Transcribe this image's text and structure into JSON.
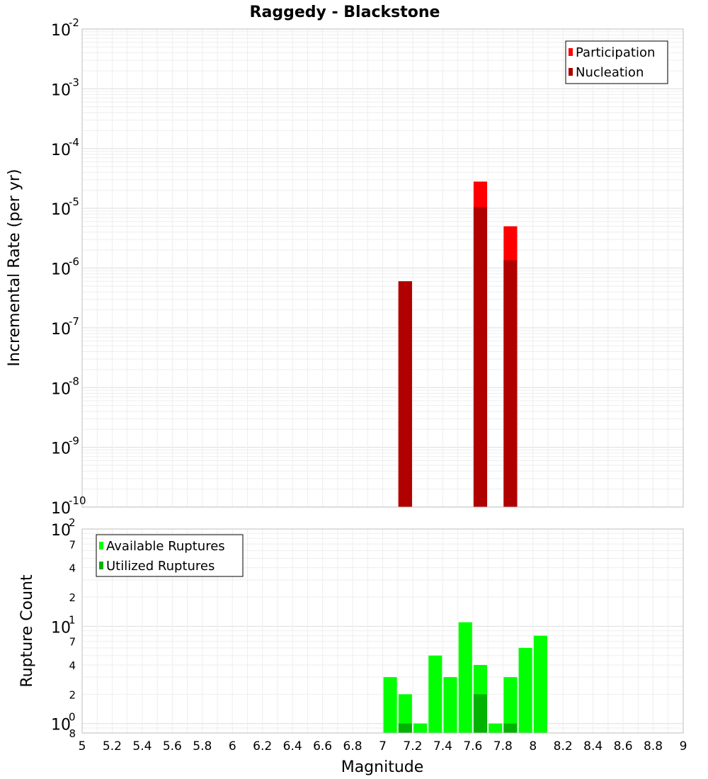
{
  "chart_data": [
    {
      "type": "bar",
      "title": "Raggedy - Blackstone",
      "xlabel": "",
      "ylabel": "Incremental Rate (per yr)",
      "yscale": "log",
      "ylim": [
        1e-10,
        0.01
      ],
      "xlim": [
        5,
        9
      ],
      "x_ticks": [
        "5",
        "5.2",
        "5.4",
        "5.6",
        "5.8",
        "6",
        "6.2",
        "6.4",
        "6.6",
        "6.8",
        "7",
        "7.2",
        "7.4",
        "7.6",
        "7.8",
        "8",
        "8.2",
        "8.4",
        "8.6",
        "8.8",
        "9"
      ],
      "bar_width": 0.09,
      "legend": {
        "position": "top-right",
        "entries": [
          "Participation",
          "Nucleation"
        ]
      },
      "series": [
        {
          "name": "Participation",
          "color": "#ff0000",
          "x": [
            7.15,
            7.65,
            7.85
          ],
          "values": [
            6e-07,
            2.8e-05,
            5e-06
          ]
        },
        {
          "name": "Nucleation",
          "color": "#b00000",
          "x": [
            7.15,
            7.65,
            7.85
          ],
          "values": [
            6e-07,
            1.05e-05,
            1.35e-06
          ]
        }
      ]
    },
    {
      "type": "bar",
      "title": "",
      "xlabel": "Magnitude",
      "ylabel": "Rupture Count",
      "yscale": "log",
      "ylim": [
        0.8,
        100
      ],
      "xlim": [
        5,
        9
      ],
      "x_ticks": [
        "5",
        "5.2",
        "5.4",
        "5.6",
        "5.8",
        "6",
        "6.2",
        "6.4",
        "6.6",
        "6.8",
        "7",
        "7.2",
        "7.4",
        "7.6",
        "7.8",
        "8",
        "8.2",
        "8.4",
        "8.6",
        "8.8",
        "9"
      ],
      "y_minor_labels": [
        {
          "value": 0.8,
          "label": "8"
        },
        {
          "value": 2,
          "label": "2"
        },
        {
          "value": 4,
          "label": "4"
        },
        {
          "value": 7,
          "label": "7"
        },
        {
          "value": 20,
          "label": "2"
        },
        {
          "value": 40,
          "label": "4"
        },
        {
          "value": 70,
          "label": "7"
        }
      ],
      "bar_width": 0.09,
      "legend": {
        "position": "top-left",
        "entries": [
          "Available Ruptures",
          "Utilized Ruptures"
        ]
      },
      "series": [
        {
          "name": "Available Ruptures",
          "color": "#00ff00",
          "x": [
            7.05,
            7.15,
            7.25,
            7.35,
            7.45,
            7.55,
            7.65,
            7.75,
            7.85,
            7.95,
            8.05
          ],
          "values": [
            3,
            2,
            1,
            5,
            3,
            11,
            4,
            1,
            3,
            6,
            8
          ]
        },
        {
          "name": "Utilized Ruptures",
          "color": "#00b300",
          "x": [
            7.15,
            7.65,
            7.85
          ],
          "values": [
            1,
            2,
            1
          ]
        }
      ]
    }
  ]
}
